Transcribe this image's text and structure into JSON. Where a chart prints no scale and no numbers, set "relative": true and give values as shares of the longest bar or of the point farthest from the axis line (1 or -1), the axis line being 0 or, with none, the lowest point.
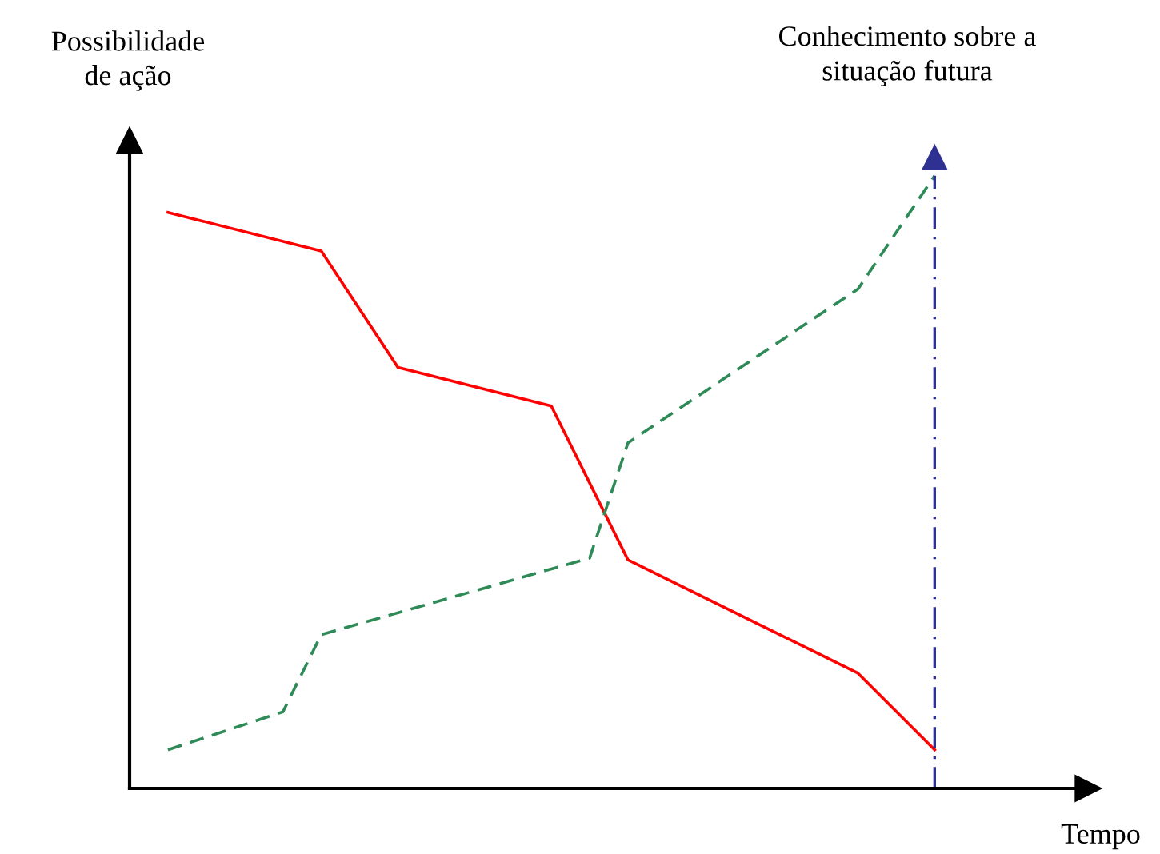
{
  "chart_data": {
    "type": "line",
    "relative": true,
    "ylabel": "Possibilidade de ação",
    "xlabel": "Tempo",
    "categories": [
      null,
      null,
      null,
      null,
      null,
      null,
      null,
      null,
      null,
      null,
      null,
      null,
      null,
      null,
      null,
      null,
      null,
      null,
      null,
      null,
      null
    ],
    "series": [
      {
        "color": "#ff0000",
        "line_style": "solid",
        "values": [
          0.94,
          null,
          null,
          null,
          0.877,
          null,
          0.687,
          null,
          null,
          null,
          0.624,
          null,
          0.373,
          null,
          null,
          null,
          null,
          null,
          0.188,
          null,
          0.063
        ]
      },
      {
        "color": "#2e8b57",
        "line_style": "dashed",
        "values": [
          0.063,
          null,
          null,
          0.125,
          0.251,
          null,
          null,
          null,
          null,
          null,
          null,
          0.376,
          0.564,
          null,
          null,
          null,
          null,
          null,
          0.815,
          null,
          1.0
        ]
      }
    ],
    "annotations": [
      "Conhecimento sobre a\nsituação futura"
    ]
  }
}
